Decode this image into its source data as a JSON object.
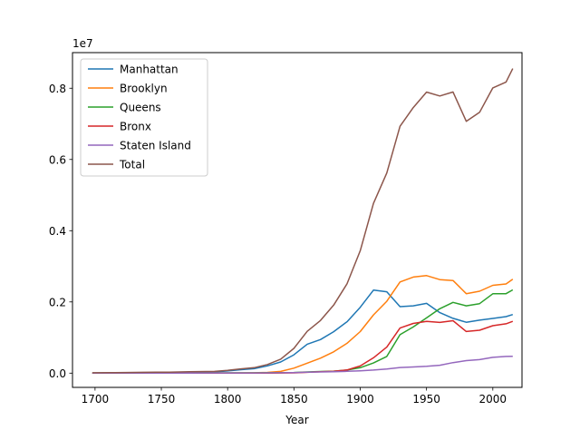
{
  "chart_data": {
    "type": "line",
    "xlabel": "Year",
    "ylabel": "",
    "y_scale_label": "1e7",
    "xlim": [
      1683,
      2022
    ],
    "ylim": [
      -400000,
      9000000
    ],
    "x_ticks": [
      1700,
      1750,
      1800,
      1850,
      1900,
      1950,
      2000
    ],
    "y_ticks": [
      0,
      2000000,
      4000000,
      6000000,
      8000000
    ],
    "y_tick_labels": [
      "0.0",
      "0.2",
      "0.4",
      "0.6",
      "0.8"
    ],
    "grid": false,
    "legend_position": "top-left",
    "x": [
      1698,
      1712,
      1723,
      1737,
      1746,
      1756,
      1771,
      1790,
      1800,
      1810,
      1820,
      1830,
      1840,
      1850,
      1860,
      1870,
      1880,
      1890,
      1900,
      1910,
      1920,
      1930,
      1940,
      1950,
      1960,
      1970,
      1980,
      1990,
      2000,
      2010,
      2015
    ],
    "series": [
      {
        "name": "Manhattan",
        "color": "#1f77b4",
        "values": [
          4937,
          5840,
          7248,
          10664,
          11717,
          13046,
          21863,
          33131,
          60515,
          96373,
          123706,
          202589,
          312710,
          515547,
          813669,
          942292,
          1164673,
          1441216,
          1850093,
          2331542,
          2284103,
          1867312,
          1889924,
          1960101,
          1698281,
          1539233,
          1428285,
          1487536,
          1537195,
          1585873,
          1644518
        ]
      },
      {
        "name": "Brooklyn",
        "color": "#ff7f0e",
        "values": [
          2017,
          2018,
          2018,
          2150,
          2331,
          2707,
          3623,
          4549,
          5740,
          8303,
          11187,
          20535,
          47613,
          138882,
          279122,
          419921,
          599495,
          838547,
          1166582,
          1634351,
          2018356,
          2560401,
          2698285,
          2738175,
          2627319,
          2602012,
          2230936,
          2300664,
          2465326,
          2504700,
          2636735
        ]
      },
      {
        "name": "Queens",
        "color": "#2ca02c",
        "values": [
          3565,
          4392,
          5663,
          7191,
          7940,
          9648,
          10980,
          6159,
          6642,
          7444,
          8246,
          9049,
          14480,
          18593,
          32903,
          45468,
          56559,
          87050,
          152999,
          284041,
          469042,
          1079129,
          1297634,
          1550849,
          1809578,
          1986473,
          1891325,
          1951598,
          2229379,
          2230722,
          2339150
        ]
      },
      {
        "name": "Bronx",
        "color": "#d62728",
        "values": [
          0,
          0,
          1000,
          1000,
          1000,
          1000,
          1000,
          1781,
          1755,
          2267,
          2782,
          3023,
          5346,
          8032,
          23593,
          37393,
          51980,
          88908,
          200507,
          430980,
          732016,
          1265258,
          1394711,
          1451277,
          1424815,
          1471701,
          1168972,
          1203789,
          1332650,
          1385108,
          1455444
        ]
      },
      {
        "name": "Staten Island",
        "color": "#9467bd",
        "values": [
          727,
          1063,
          1506,
          1817,
          2073,
          2154,
          2847,
          3827,
          4563,
          5347,
          6135,
          7082,
          10965,
          15061,
          25492,
          33029,
          38991,
          51693,
          67021,
          85969,
          116531,
          158346,
          174441,
          191555,
          221991,
          295443,
          352121,
          378977,
          443728,
          468730,
          474558
        ]
      },
      {
        "name": "Total",
        "color": "#8c564b",
        "values": [
          11246,
          13313,
          17435,
          22822,
          25061,
          28555,
          40334,
          49447,
          79215,
          119734,
          152056,
          242278,
          391114,
          696115,
          1174779,
          1478103,
          1911698,
          2507414,
          3437202,
          4766883,
          5620048,
          6930446,
          7454995,
          7891957,
          7781984,
          7894862,
          7071639,
          7322564,
          8008278,
          8175133,
          8550405
        ]
      }
    ]
  }
}
